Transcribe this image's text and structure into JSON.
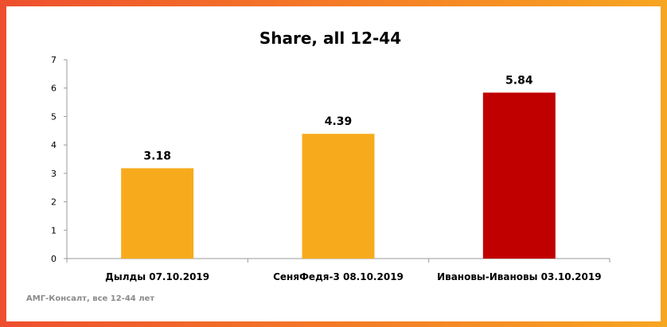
{
  "chart_data": {
    "type": "bar",
    "title": "Share, all 12-44",
    "categories": [
      "Дылды 07.10.2019",
      "СеняФедя-3 08.10.2019",
      "Ивановы-Ивановы 03.10.2019"
    ],
    "values": [
      3.18,
      4.39,
      5.84
    ],
    "data_labels": [
      "3.18",
      "4.39",
      "5.84"
    ],
    "bar_colors": [
      "#f7ab1c",
      "#f7ab1c",
      "#c00000"
    ],
    "ylim": [
      0,
      7
    ],
    "yticks": [
      "0",
      "1",
      "2",
      "3",
      "4",
      "5",
      "6",
      "7"
    ],
    "xlabel": "",
    "ylabel": "",
    "grid": false,
    "legend": "none"
  },
  "footer": {
    "source": "АМГ-Консалт, все 12-44 лет"
  },
  "colors": {
    "frame_gradient": [
      "#ee4f2f",
      "#f7a621"
    ],
    "axis": "#9a9a9a",
    "text": "#000000"
  }
}
